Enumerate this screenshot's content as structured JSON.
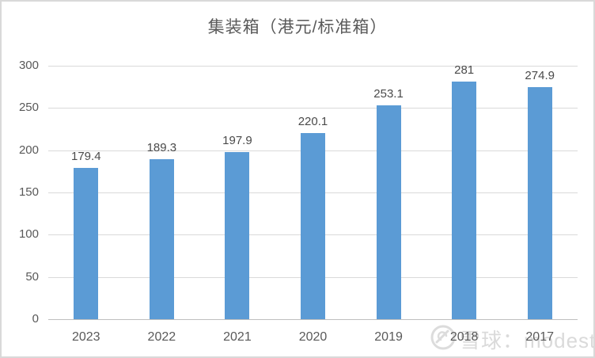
{
  "chart_data": {
    "type": "bar",
    "title": "集装箱（港元/标准箱）",
    "categories": [
      "2023",
      "2022",
      "2021",
      "2020",
      "2019",
      "2018",
      "2017"
    ],
    "values": [
      179.4,
      189.3,
      197.9,
      220.1,
      253.1,
      281,
      274.9
    ],
    "value_labels": [
      "179.4",
      "189.3",
      "197.9",
      "220.1",
      "253.1",
      "281",
      "274.9"
    ],
    "xlabel": "",
    "ylabel": "",
    "ylim": [
      0,
      300
    ],
    "ytick_step": 50,
    "ytick_labels": [
      "0",
      "50",
      "100",
      "150",
      "200",
      "250",
      "300"
    ],
    "grid": true,
    "legend": false
  },
  "watermark": {
    "text": "雪球：modest_",
    "logo": "xueqiu-snowball-logo"
  },
  "colors": {
    "bar": "#5b9bd5",
    "gridline": "#d9d9d9",
    "axis_line": "#bfbfbf",
    "text": "#595959",
    "value_label": "#4a4a4a",
    "title": "#595959",
    "watermark": "#d6d6d6",
    "background": "#ffffff"
  }
}
